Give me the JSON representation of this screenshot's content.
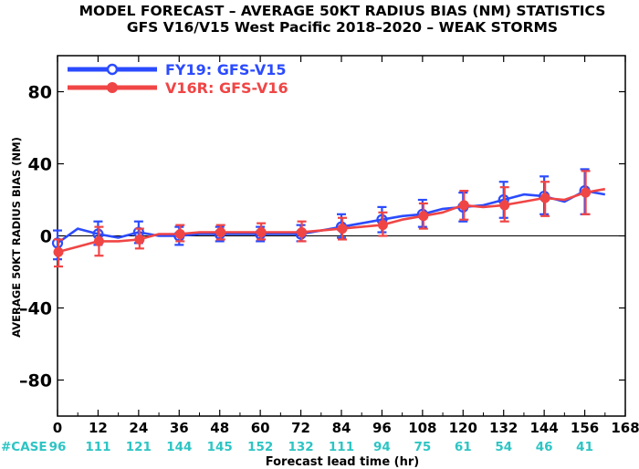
{
  "chart_data": {
    "type": "line",
    "title": "MODEL FORECAST – AVERAGE 50KT RADIUS BIAS (NM) STATISTICS",
    "subtitle": "GFS V16/V15 West Pacific 2018–2020 – WEAK STORMS",
    "xlabel": "Forecast lead time (hr)",
    "ylabel": "AVERAGE 50KT RADIUS BIAS (NM)",
    "xlim": [
      0,
      168
    ],
    "ylim": [
      -100,
      100
    ],
    "x_ticks": [
      "0",
      "12",
      "24",
      "36",
      "48",
      "60",
      "72",
      "84",
      "96",
      "108",
      "120",
      "132",
      "144",
      "156",
      "168"
    ],
    "y_ticks": [
      {
        "value": 80,
        "label": "80"
      },
      {
        "value": 40,
        "label": "40"
      },
      {
        "value": 0,
        "label": "0"
      },
      {
        "value": -40,
        "label": "–40"
      },
      {
        "value": -80,
        "label": "–80"
      }
    ],
    "zero_line": true,
    "legend_position": "top-left",
    "case_label": "#CASE",
    "case_counts": [
      {
        "x": 0,
        "label": "96"
      },
      {
        "x": 12,
        "label": "111"
      },
      {
        "x": 24,
        "label": "121"
      },
      {
        "x": 36,
        "label": "144"
      },
      {
        "x": 48,
        "label": "145"
      },
      {
        "x": 60,
        "label": "152"
      },
      {
        "x": 72,
        "label": "132"
      },
      {
        "x": 84,
        "label": "111"
      },
      {
        "x": 96,
        "label": "94"
      },
      {
        "x": 108,
        "label": "75"
      },
      {
        "x": 120,
        "label": "61"
      },
      {
        "x": 132,
        "label": "54"
      },
      {
        "x": 144,
        "label": "46"
      },
      {
        "x": 156,
        "label": "41"
      }
    ],
    "series": [
      {
        "name": "FY19: GFS-V15",
        "color": "#2b4bff",
        "x": [
          0,
          6,
          12,
          18,
          24,
          30,
          36,
          42,
          48,
          54,
          60,
          66,
          72,
          78,
          84,
          90,
          96,
          102,
          108,
          114,
          120,
          126,
          132,
          138,
          144,
          150,
          156,
          162
        ],
        "y": [
          -4,
          4,
          1,
          -1,
          2,
          0,
          0,
          1,
          1,
          1,
          1,
          1,
          1,
          3,
          5,
          7,
          9,
          11,
          12,
          15,
          16,
          17,
          20,
          23,
          22,
          19,
          25,
          23
        ],
        "markers": [
          {
            "x": 0,
            "y": -4,
            "low": -13,
            "high": 3
          },
          {
            "x": 12,
            "y": 1,
            "low": -5,
            "high": 8
          },
          {
            "x": 24,
            "y": 2,
            "low": -4,
            "high": 8
          },
          {
            "x": 36,
            "y": 0,
            "low": -5,
            "high": 5
          },
          {
            "x": 48,
            "y": 1,
            "low": -3,
            "high": 5
          },
          {
            "x": 60,
            "y": 1,
            "low": -3,
            "high": 5
          },
          {
            "x": 72,
            "y": 1,
            "low": -3,
            "high": 6
          },
          {
            "x": 84,
            "y": 5,
            "low": -1,
            "high": 12
          },
          {
            "x": 96,
            "y": 9,
            "low": 2,
            "high": 16
          },
          {
            "x": 108,
            "y": 12,
            "low": 5,
            "high": 20
          },
          {
            "x": 120,
            "y": 16,
            "low": 8,
            "high": 24
          },
          {
            "x": 132,
            "y": 20,
            "low": 10,
            "high": 30
          },
          {
            "x": 144,
            "y": 22,
            "low": 12,
            "high": 33
          },
          {
            "x": 156,
            "y": 25,
            "low": 12,
            "high": 37
          }
        ]
      },
      {
        "name": "V16R: GFS-V16",
        "color": "#f04545",
        "x": [
          0,
          6,
          12,
          18,
          24,
          30,
          36,
          42,
          48,
          54,
          60,
          66,
          72,
          78,
          84,
          90,
          96,
          102,
          108,
          114,
          120,
          126,
          132,
          138,
          144,
          150,
          156,
          162
        ],
        "y": [
          -9,
          -6,
          -3,
          -3,
          -2,
          1,
          1,
          2,
          2,
          2,
          2,
          2,
          2,
          3,
          4,
          5,
          6,
          9,
          11,
          13,
          17,
          16,
          17,
          19,
          21,
          20,
          24,
          26
        ],
        "markers": [
          {
            "x": 0,
            "y": -9,
            "low": -17,
            "high": -2
          },
          {
            "x": 12,
            "y": -3,
            "low": -11,
            "high": 5
          },
          {
            "x": 24,
            "y": -2,
            "low": -7,
            "high": 4
          },
          {
            "x": 36,
            "y": 1,
            "low": -3,
            "high": 6
          },
          {
            "x": 48,
            "y": 2,
            "low": -2,
            "high": 6
          },
          {
            "x": 60,
            "y": 2,
            "low": -2,
            "high": 7
          },
          {
            "x": 72,
            "y": 2,
            "low": -3,
            "high": 8
          },
          {
            "x": 84,
            "y": 4,
            "low": -2,
            "high": 10
          },
          {
            "x": 96,
            "y": 6,
            "low": 0,
            "high": 13
          },
          {
            "x": 108,
            "y": 11,
            "low": 4,
            "high": 18
          },
          {
            "x": 120,
            "y": 17,
            "low": 9,
            "high": 25
          },
          {
            "x": 132,
            "y": 17,
            "low": 8,
            "high": 27
          },
          {
            "x": 144,
            "y": 21,
            "low": 11,
            "high": 30
          },
          {
            "x": 156,
            "y": 24,
            "low": 12,
            "high": 36
          }
        ]
      }
    ]
  }
}
